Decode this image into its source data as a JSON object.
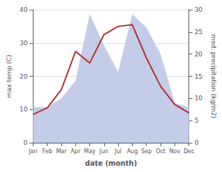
{
  "chart_data": {
    "type": "line",
    "categories": [
      "Jan",
      "Feb",
      "Mar",
      "Apr",
      "May",
      "Jun",
      "Jul",
      "Aug",
      "Sep",
      "Oct",
      "Nov",
      "Dec"
    ],
    "xlabel": "date (month)",
    "ylabel": "max temp (C)",
    "y2label": "med. precipitation (kg/m2)",
    "series": [
      {
        "type": "area",
        "color": "#c5cce8",
        "axis": "y2",
        "values": [
          8.0,
          8.0,
          10.0,
          14.0,
          29.0,
          22.0,
          16.0,
          29.0,
          26.0,
          20.0,
          9.0,
          8.0
        ]
      },
      {
        "type": "line",
        "color": "#aa3333",
        "values": [
          8.5,
          10.5,
          16.0,
          27.5,
          24.0,
          32.5,
          35.0,
          35.5,
          25.5,
          17.0,
          11.5,
          9.0
        ]
      }
    ],
    "ylim": [
      0,
      40
    ],
    "yticks": [
      0,
      10,
      20,
      30,
      40
    ],
    "y2lim": [
      0,
      30
    ],
    "y2ticks": [
      0,
      5,
      10,
      15,
      20,
      25,
      30
    ],
    "grid": true
  }
}
